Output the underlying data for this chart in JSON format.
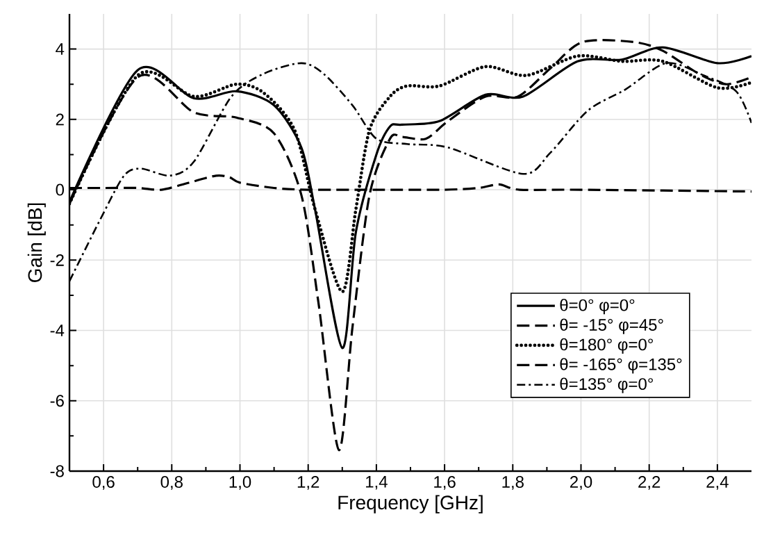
{
  "chart_data": {
    "type": "line",
    "xlabel": "Frequency [GHz]",
    "ylabel": "Gain [dB]",
    "xlim": [
      0.5,
      2.5
    ],
    "ylim": [
      -8,
      5
    ],
    "xticks": [
      {
        "value": 0.6,
        "label": "0,6"
      },
      {
        "value": 0.8,
        "label": "0,8"
      },
      {
        "value": 1.0,
        "label": "1,0"
      },
      {
        "value": 1.2,
        "label": "1,2"
      },
      {
        "value": 1.4,
        "label": "1,4"
      },
      {
        "value": 1.6,
        "label": "1,6"
      },
      {
        "value": 1.8,
        "label": "1,8"
      },
      {
        "value": 2.0,
        "label": "2,0"
      },
      {
        "value": 2.2,
        "label": "2,2"
      },
      {
        "value": 2.4,
        "label": "2,4"
      }
    ],
    "yticks": [
      -8,
      -6,
      -4,
      -2,
      0,
      2,
      4
    ],
    "grid": true,
    "legend": "right",
    "marker": "none",
    "series": [
      {
        "name": "θ=0°   φ=0°",
        "color": "#000000",
        "line_style": "solid",
        "x": [
          0.5,
          0.7,
          0.865,
          0.99,
          1.1,
          1.18,
          1.22,
          1.3,
          1.34,
          1.4,
          1.44,
          1.475,
          1.585,
          1.72,
          1.83,
          1.99,
          2.12,
          2.24,
          2.4,
          2.5
        ],
        "values": [
          -0.35,
          3.4,
          2.6,
          2.8,
          2.4,
          1.2,
          -0.55,
          -4.5,
          -1.2,
          1.0,
          1.8,
          1.85,
          1.95,
          2.7,
          2.65,
          3.65,
          3.7,
          4.05,
          3.6,
          3.8
        ]
      },
      {
        "name": "θ= -15°   φ=45°",
        "color": "#000000",
        "line_style": "dashed",
        "x": [
          0.5,
          0.7,
          0.865,
          0.99,
          1.1,
          1.18,
          1.23,
          1.29,
          1.33,
          1.38,
          1.44,
          1.475,
          1.545,
          1.61,
          1.72,
          1.815,
          1.91,
          2.005,
          2.155,
          2.24,
          2.345,
          2.425,
          2.5
        ],
        "values": [
          -0.4,
          3.2,
          2.2,
          2.05,
          1.6,
          -0.15,
          -3.2,
          -7.4,
          -3.9,
          -0.15,
          1.45,
          1.5,
          1.45,
          1.95,
          2.65,
          2.65,
          3.45,
          4.2,
          4.2,
          3.95,
          3.3,
          3.0,
          3.2
        ]
      },
      {
        "name": "θ=180°   φ=0°",
        "color": "#000000",
        "line_style": "dotted",
        "x": [
          0.5,
          0.7,
          0.865,
          0.99,
          1.07,
          1.16,
          1.22,
          1.3,
          1.34,
          1.38,
          1.44,
          1.49,
          1.585,
          1.72,
          1.84,
          1.99,
          2.12,
          2.24,
          2.4,
          2.5
        ],
        "values": [
          -0.4,
          3.25,
          2.65,
          3.0,
          2.75,
          1.7,
          -0.55,
          -2.9,
          -0.55,
          1.7,
          2.65,
          2.95,
          2.95,
          3.5,
          3.25,
          3.8,
          3.65,
          3.65,
          2.9,
          3.05
        ]
      },
      {
        "name": "θ= -165°   φ=135°",
        "color": "#000000",
        "line_style": "dashed",
        "x": [
          0.5,
          0.6,
          0.7,
          0.77,
          0.85,
          0.93,
          0.97,
          1.0,
          1.1,
          1.2,
          1.4,
          1.6,
          1.7,
          1.76,
          1.82,
          2.0,
          2.5
        ],
        "values": [
          0.05,
          0.05,
          0.05,
          0.0,
          0.2,
          0.4,
          0.35,
          0.2,
          0.05,
          0.0,
          0.0,
          0.0,
          0.05,
          0.15,
          0.0,
          0.0,
          -0.05
        ]
      },
      {
        "name": "θ=135°   φ=0°",
        "color": "#000000",
        "line_style": "dashdot",
        "x": [
          0.5,
          0.59,
          0.66,
          0.71,
          0.795,
          0.865,
          0.975,
          1.07,
          1.18,
          1.245,
          1.33,
          1.4,
          1.49,
          1.61,
          1.83,
          1.91,
          2.02,
          2.13,
          2.25,
          2.36,
          2.455,
          2.5
        ],
        "values": [
          -2.6,
          -0.85,
          0.4,
          0.6,
          0.4,
          0.8,
          2.65,
          3.3,
          3.6,
          3.3,
          2.4,
          1.45,
          1.3,
          1.2,
          0.45,
          1.05,
          2.25,
          2.85,
          3.6,
          3.25,
          2.8,
          1.9
        ]
      }
    ]
  }
}
